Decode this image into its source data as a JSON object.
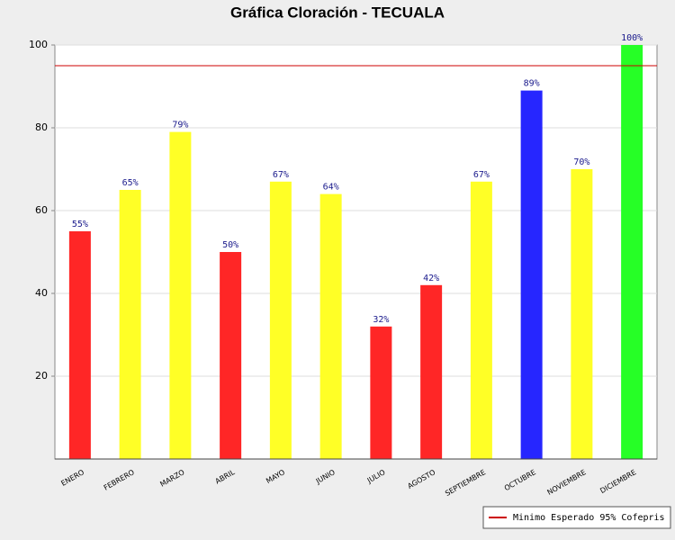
{
  "chart_data": {
    "type": "bar",
    "title": "Gráfica Cloración - TECUALA",
    "categories": [
      "ENERO",
      "FEBRERO",
      "MARZO",
      "ABRIL",
      "MAYO",
      "JUNIO",
      "JULIO",
      "AGOSTO",
      "SEPTIEMBRE",
      "OCTUBRE",
      "NOVIEMBRE",
      "DICIEMBRE"
    ],
    "values": [
      55,
      65,
      79,
      50,
      67,
      64,
      32,
      42,
      67,
      89,
      70,
      100
    ],
    "value_labels": [
      "55%",
      "65%",
      "79%",
      "50%",
      "67%",
      "64%",
      "32%",
      "42%",
      "67%",
      "89%",
      "70%",
      "100%"
    ],
    "colors": [
      "#ff2626",
      "#ffff26",
      "#ffff26",
      "#ff2626",
      "#ffff26",
      "#ffff26",
      "#ff2626",
      "#ff2626",
      "#ffff26",
      "#2626ff",
      "#ffff26",
      "#26ff26"
    ],
    "ylim": [
      0,
      100
    ],
    "yticks": [
      20,
      40,
      60,
      80,
      100
    ],
    "grid": true,
    "reference_line": {
      "value": 95,
      "label": "Minimo Esperado 95% Cofepris",
      "color": "#cc0000"
    },
    "legend_position": "bottom-right"
  }
}
